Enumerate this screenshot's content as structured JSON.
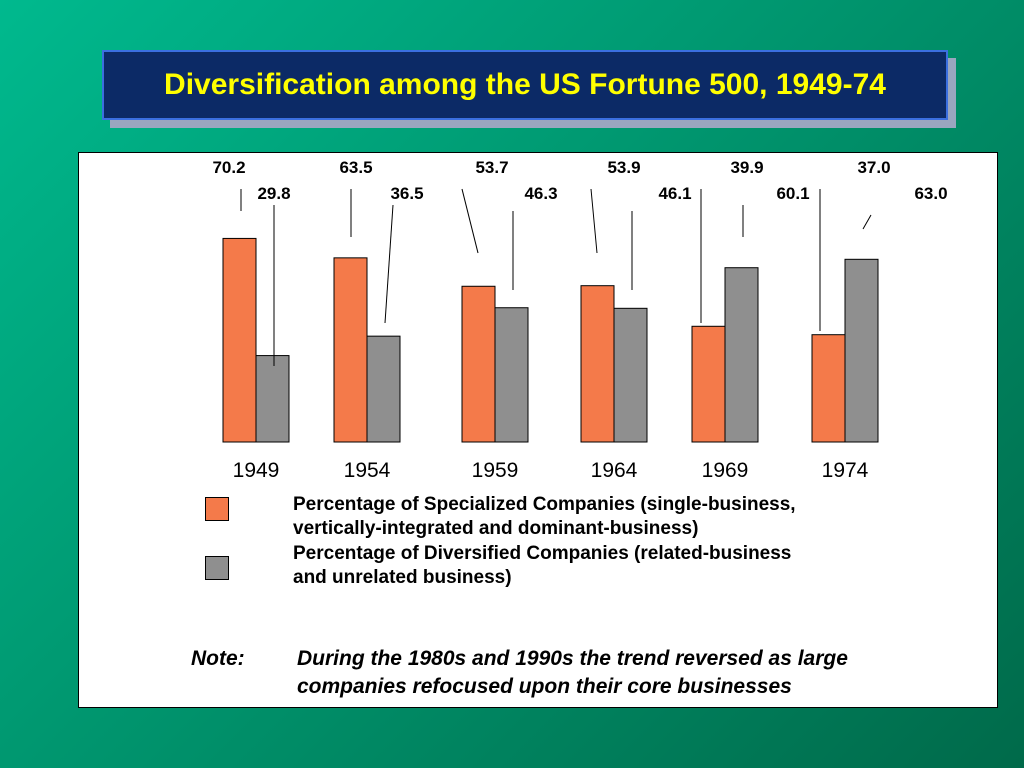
{
  "title": "Diversification among the US Fortune 500, 1949-74",
  "colors": {
    "specialized": "#f47a4a",
    "diversified": "#8f8f8f"
  },
  "chart_data": {
    "type": "bar",
    "categories": [
      "1949",
      "1954",
      "1959",
      "1964",
      "1969",
      "1974"
    ],
    "series": [
      {
        "name": "Percentage of Specialized Companies (single-business, vertically-integrated and dominant-business)",
        "values": [
          70.2,
          63.5,
          53.7,
          53.9,
          39.9,
          37.0
        ]
      },
      {
        "name": "Percentage of Diversified Companies (related-business and unrelated business)",
        "values": [
          29.8,
          36.5,
          46.3,
          46.1,
          60.1,
          63.0
        ]
      }
    ],
    "value_labels": [
      [
        "70.2",
        "63.5",
        "53.7",
        "53.9",
        "39.9",
        "37.0"
      ],
      [
        "29.8",
        "36.5",
        "46.3",
        "46.1",
        "60.1",
        "63.0"
      ]
    ],
    "ylim": [
      0,
      100
    ],
    "grid": false,
    "legend_position": "bottom"
  },
  "legend": [
    {
      "label": "Percentage of Specialized Companies (single-business,\nvertically-integrated and dominant-business)"
    },
    {
      "label": "Percentage of Diversified Companies (related-business\nand unrelated business)"
    }
  ],
  "note": {
    "label": "Note:",
    "text": "During the 1980s and 1990s the trend reversed as large\n companies refocused upon their core businesses"
  }
}
